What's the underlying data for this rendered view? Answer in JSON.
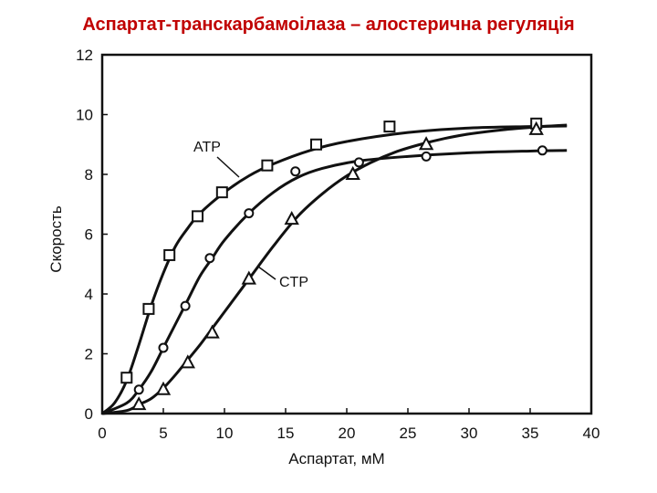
{
  "title": "Аспартат-транскарбамоілаза – алостерична регуляція",
  "chart_data": {
    "type": "line",
    "title": "Аспартат-транскарбамоілаза – алостерична регуляція",
    "xlabel": "Аспартат, мМ",
    "ylabel": "Скорость",
    "xlim": [
      0,
      40
    ],
    "ylim": [
      0,
      12
    ],
    "x_ticks": [
      "0",
      "5",
      "10",
      "15",
      "20",
      "25",
      "30",
      "35",
      "40"
    ],
    "y_ticks": [
      "0",
      "2",
      "4",
      "6",
      "8",
      "10",
      "12"
    ],
    "grid": false,
    "series": [
      {
        "name": "ATP",
        "marker": "square",
        "points": [
          [
            2,
            1.2
          ],
          [
            3.8,
            3.5
          ],
          [
            5.5,
            5.3
          ],
          [
            7.8,
            6.6
          ],
          [
            9.8,
            7.4
          ],
          [
            13.5,
            8.3
          ],
          [
            17.5,
            9.0
          ],
          [
            23.5,
            9.6
          ],
          [
            35.5,
            9.7
          ]
        ],
        "curve": [
          [
            0,
            0
          ],
          [
            1,
            0.35
          ],
          [
            2,
            1.1
          ],
          [
            3,
            2.3
          ],
          [
            4,
            3.6
          ],
          [
            5,
            4.7
          ],
          [
            6,
            5.6
          ],
          [
            7,
            6.2
          ],
          [
            8,
            6.7
          ],
          [
            10,
            7.4
          ],
          [
            12,
            7.95
          ],
          [
            14,
            8.35
          ],
          [
            17,
            8.8
          ],
          [
            20,
            9.1
          ],
          [
            25,
            9.4
          ],
          [
            30,
            9.55
          ],
          [
            35,
            9.6
          ],
          [
            38,
            9.62
          ]
        ]
      },
      {
        "name": "",
        "marker": "circle",
        "points": [
          [
            3,
            0.8
          ],
          [
            5,
            2.2
          ],
          [
            6.8,
            3.6
          ],
          [
            8.8,
            5.2
          ],
          [
            12,
            6.7
          ],
          [
            15.8,
            8.1
          ],
          [
            21,
            8.4
          ],
          [
            26.5,
            8.6
          ],
          [
            36,
            8.8
          ]
        ],
        "curve": [
          [
            0,
            0
          ],
          [
            2,
            0.35
          ],
          [
            3,
            0.8
          ],
          [
            4,
            1.4
          ],
          [
            5,
            2.2
          ],
          [
            6,
            3.0
          ],
          [
            7,
            3.8
          ],
          [
            8,
            4.6
          ],
          [
            9,
            5.2
          ],
          [
            10,
            5.8
          ],
          [
            12,
            6.7
          ],
          [
            14,
            7.4
          ],
          [
            16,
            7.9
          ],
          [
            18,
            8.2
          ],
          [
            21,
            8.45
          ],
          [
            25,
            8.6
          ],
          [
            30,
            8.72
          ],
          [
            35,
            8.78
          ],
          [
            38,
            8.8
          ]
        ]
      },
      {
        "name": "CTP",
        "marker": "triangle",
        "points": [
          [
            3,
            0.3
          ],
          [
            5,
            0.8
          ],
          [
            7,
            1.7
          ],
          [
            9,
            2.7
          ],
          [
            12,
            4.5
          ],
          [
            15.5,
            6.5
          ],
          [
            20.5,
            8.0
          ],
          [
            26.5,
            9.0
          ],
          [
            35.5,
            9.5
          ]
        ],
        "curve": [
          [
            0,
            0
          ],
          [
            2,
            0.1
          ],
          [
            3,
            0.3
          ],
          [
            4,
            0.5
          ],
          [
            5,
            0.85
          ],
          [
            6,
            1.3
          ],
          [
            7,
            1.8
          ],
          [
            8,
            2.3
          ],
          [
            9,
            2.85
          ],
          [
            10,
            3.4
          ],
          [
            12,
            4.5
          ],
          [
            14,
            5.6
          ],
          [
            16,
            6.6
          ],
          [
            18,
            7.35
          ],
          [
            20,
            7.95
          ],
          [
            22,
            8.4
          ],
          [
            24,
            8.75
          ],
          [
            26,
            9.0
          ],
          [
            28,
            9.2
          ],
          [
            30,
            9.35
          ],
          [
            33,
            9.5
          ],
          [
            36,
            9.6
          ],
          [
            38,
            9.65
          ]
        ]
      }
    ],
    "annotations": [
      "ATP",
      "CTP"
    ]
  }
}
